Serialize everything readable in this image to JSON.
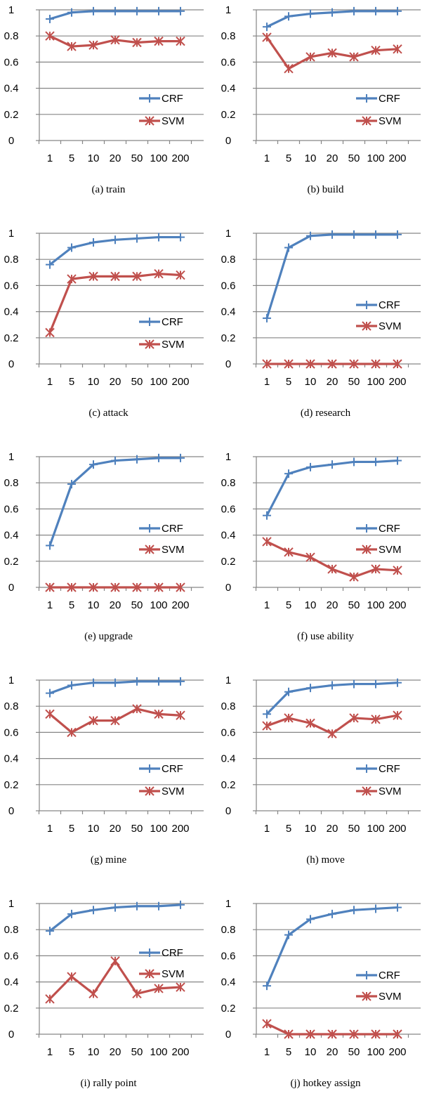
{
  "colors": {
    "CRF": "#4f81bd",
    "SVM": "#c0504d",
    "grid": "#868686",
    "axis": "#868686"
  },
  "chart_data": [
    {
      "type": "line",
      "caption": "(a)  train",
      "categories": [
        "1",
        "5",
        "10",
        "20",
        "50",
        "100",
        "200"
      ],
      "ylim": [
        0,
        1
      ],
      "yticks": [
        "0",
        "0.2",
        "0.4",
        "0.6",
        "0.8",
        "1"
      ],
      "legend_position": "bottom-right",
      "series": [
        {
          "name": "CRF",
          "marker": "plus",
          "values": [
            0.93,
            0.98,
            0.99,
            0.99,
            0.99,
            0.99,
            0.99
          ]
        },
        {
          "name": "SVM",
          "marker": "star",
          "values": [
            0.8,
            0.72,
            0.73,
            0.77,
            0.75,
            0.76,
            0.76
          ]
        }
      ]
    },
    {
      "type": "line",
      "caption": "(b)  build",
      "categories": [
        "1",
        "5",
        "10",
        "20",
        "50",
        "100",
        "200"
      ],
      "ylim": [
        0,
        1
      ],
      "yticks": [
        "0",
        "0.2",
        "0.4",
        "0.6",
        "0.8",
        "1"
      ],
      "legend_position": "bottom-right",
      "series": [
        {
          "name": "CRF",
          "marker": "plus",
          "values": [
            0.87,
            0.95,
            0.97,
            0.98,
            0.99,
            0.99,
            0.99
          ]
        },
        {
          "name": "SVM",
          "marker": "star",
          "values": [
            0.79,
            0.55,
            0.64,
            0.67,
            0.64,
            0.69,
            0.7
          ]
        }
      ]
    },
    {
      "type": "line",
      "caption": "(c)  attack",
      "categories": [
        "1",
        "5",
        "10",
        "20",
        "50",
        "100",
        "200"
      ],
      "ylim": [
        0,
        1
      ],
      "yticks": [
        "0",
        "0.2",
        "0.4",
        "0.6",
        "0.8",
        "1"
      ],
      "legend_position": "bottom-right",
      "series": [
        {
          "name": "CRF",
          "marker": "plus",
          "values": [
            0.76,
            0.89,
            0.93,
            0.95,
            0.96,
            0.97,
            0.97
          ]
        },
        {
          "name": "SVM",
          "marker": "star",
          "values": [
            0.24,
            0.65,
            0.67,
            0.67,
            0.67,
            0.69,
            0.68
          ]
        }
      ]
    },
    {
      "type": "line",
      "caption": "(d)  research",
      "categories": [
        "1",
        "5",
        "10",
        "20",
        "50",
        "100",
        "200"
      ],
      "ylim": [
        0,
        1
      ],
      "yticks": [
        "0",
        "0.2",
        "0.4",
        "0.6",
        "0.8",
        "1"
      ],
      "legend_position": "middle-right",
      "series": [
        {
          "name": "CRF",
          "marker": "plus",
          "values": [
            0.35,
            0.89,
            0.98,
            0.99,
            0.99,
            0.99,
            0.99
          ]
        },
        {
          "name": "SVM",
          "marker": "star",
          "values": [
            0,
            0,
            0,
            0,
            0,
            0,
            0
          ]
        }
      ]
    },
    {
      "type": "line",
      "caption": "(e)  upgrade",
      "categories": [
        "1",
        "5",
        "10",
        "20",
        "50",
        "100",
        "200"
      ],
      "ylim": [
        0,
        1
      ],
      "yticks": [
        "0",
        "0.2",
        "0.4",
        "0.6",
        "0.8",
        "1"
      ],
      "legend_position": "middle-right",
      "series": [
        {
          "name": "CRF",
          "marker": "plus",
          "values": [
            0.32,
            0.79,
            0.94,
            0.97,
            0.98,
            0.99,
            0.99
          ]
        },
        {
          "name": "SVM",
          "marker": "star",
          "values": [
            0,
            0,
            0,
            0,
            0,
            0,
            0
          ]
        }
      ]
    },
    {
      "type": "line",
      "caption": "(f)  use ability",
      "categories": [
        "1",
        "5",
        "10",
        "20",
        "50",
        "100",
        "200"
      ],
      "ylim": [
        0,
        1
      ],
      "yticks": [
        "0",
        "0.2",
        "0.4",
        "0.6",
        "0.8",
        "1"
      ],
      "legend_position": "middle-right",
      "series": [
        {
          "name": "CRF",
          "marker": "plus",
          "values": [
            0.55,
            0.87,
            0.92,
            0.94,
            0.96,
            0.96,
            0.97
          ]
        },
        {
          "name": "SVM",
          "marker": "star",
          "values": [
            0.35,
            0.27,
            0.23,
            0.14,
            0.08,
            0.14,
            0.13
          ]
        }
      ]
    },
    {
      "type": "line",
      "caption": "(g)  mine",
      "categories": [
        "1",
        "5",
        "10",
        "20",
        "50",
        "100",
        "200"
      ],
      "ylim": [
        0,
        1
      ],
      "yticks": [
        "0",
        "0.2",
        "0.4",
        "0.6",
        "0.8",
        "1"
      ],
      "legend_position": "bottom-right",
      "series": [
        {
          "name": "CRF",
          "marker": "plus",
          "values": [
            0.9,
            0.96,
            0.98,
            0.98,
            0.99,
            0.99,
            0.99
          ]
        },
        {
          "name": "SVM",
          "marker": "star",
          "values": [
            0.74,
            0.6,
            0.69,
            0.69,
            0.78,
            0.74,
            0.73
          ]
        }
      ]
    },
    {
      "type": "line",
      "caption": "(h)  move",
      "categories": [
        "1",
        "5",
        "10",
        "20",
        "50",
        "100",
        "200"
      ],
      "ylim": [
        0,
        1
      ],
      "yticks": [
        "0",
        "0.2",
        "0.4",
        "0.6",
        "0.8",
        "1"
      ],
      "legend_position": "bottom-right",
      "series": [
        {
          "name": "CRF",
          "marker": "plus",
          "values": [
            0.74,
            0.91,
            0.94,
            0.96,
            0.97,
            0.97,
            0.98
          ]
        },
        {
          "name": "SVM",
          "marker": "star",
          "values": [
            0.65,
            0.71,
            0.67,
            0.59,
            0.71,
            0.7,
            0.73
          ]
        }
      ]
    },
    {
      "type": "line",
      "caption": "(i)  rally point",
      "categories": [
        "1",
        "5",
        "10",
        "20",
        "50",
        "100",
        "200"
      ],
      "ylim": [
        0,
        1
      ],
      "yticks": [
        "0",
        "0.2",
        "0.4",
        "0.6",
        "0.8",
        "1"
      ],
      "legend_position": "top-right",
      "series": [
        {
          "name": "CRF",
          "marker": "plus",
          "values": [
            0.79,
            0.92,
            0.95,
            0.97,
            0.98,
            0.98,
            0.99
          ]
        },
        {
          "name": "SVM",
          "marker": "star",
          "values": [
            0.27,
            0.44,
            0.31,
            0.56,
            0.31,
            0.35,
            0.36
          ]
        }
      ]
    },
    {
      "type": "line",
      "caption": "(j)  hotkey assign",
      "categories": [
        "1",
        "5",
        "10",
        "20",
        "50",
        "100",
        "200"
      ],
      "ylim": [
        0,
        1
      ],
      "yticks": [
        "0",
        "0.2",
        "0.4",
        "0.6",
        "0.8",
        "1"
      ],
      "legend_position": "middle-right",
      "series": [
        {
          "name": "CRF",
          "marker": "plus",
          "values": [
            0.37,
            0.76,
            0.88,
            0.92,
            0.95,
            0.96,
            0.97
          ]
        },
        {
          "name": "SVM",
          "marker": "star",
          "values": [
            0.08,
            0,
            0,
            0,
            0,
            0,
            0
          ]
        }
      ]
    }
  ]
}
